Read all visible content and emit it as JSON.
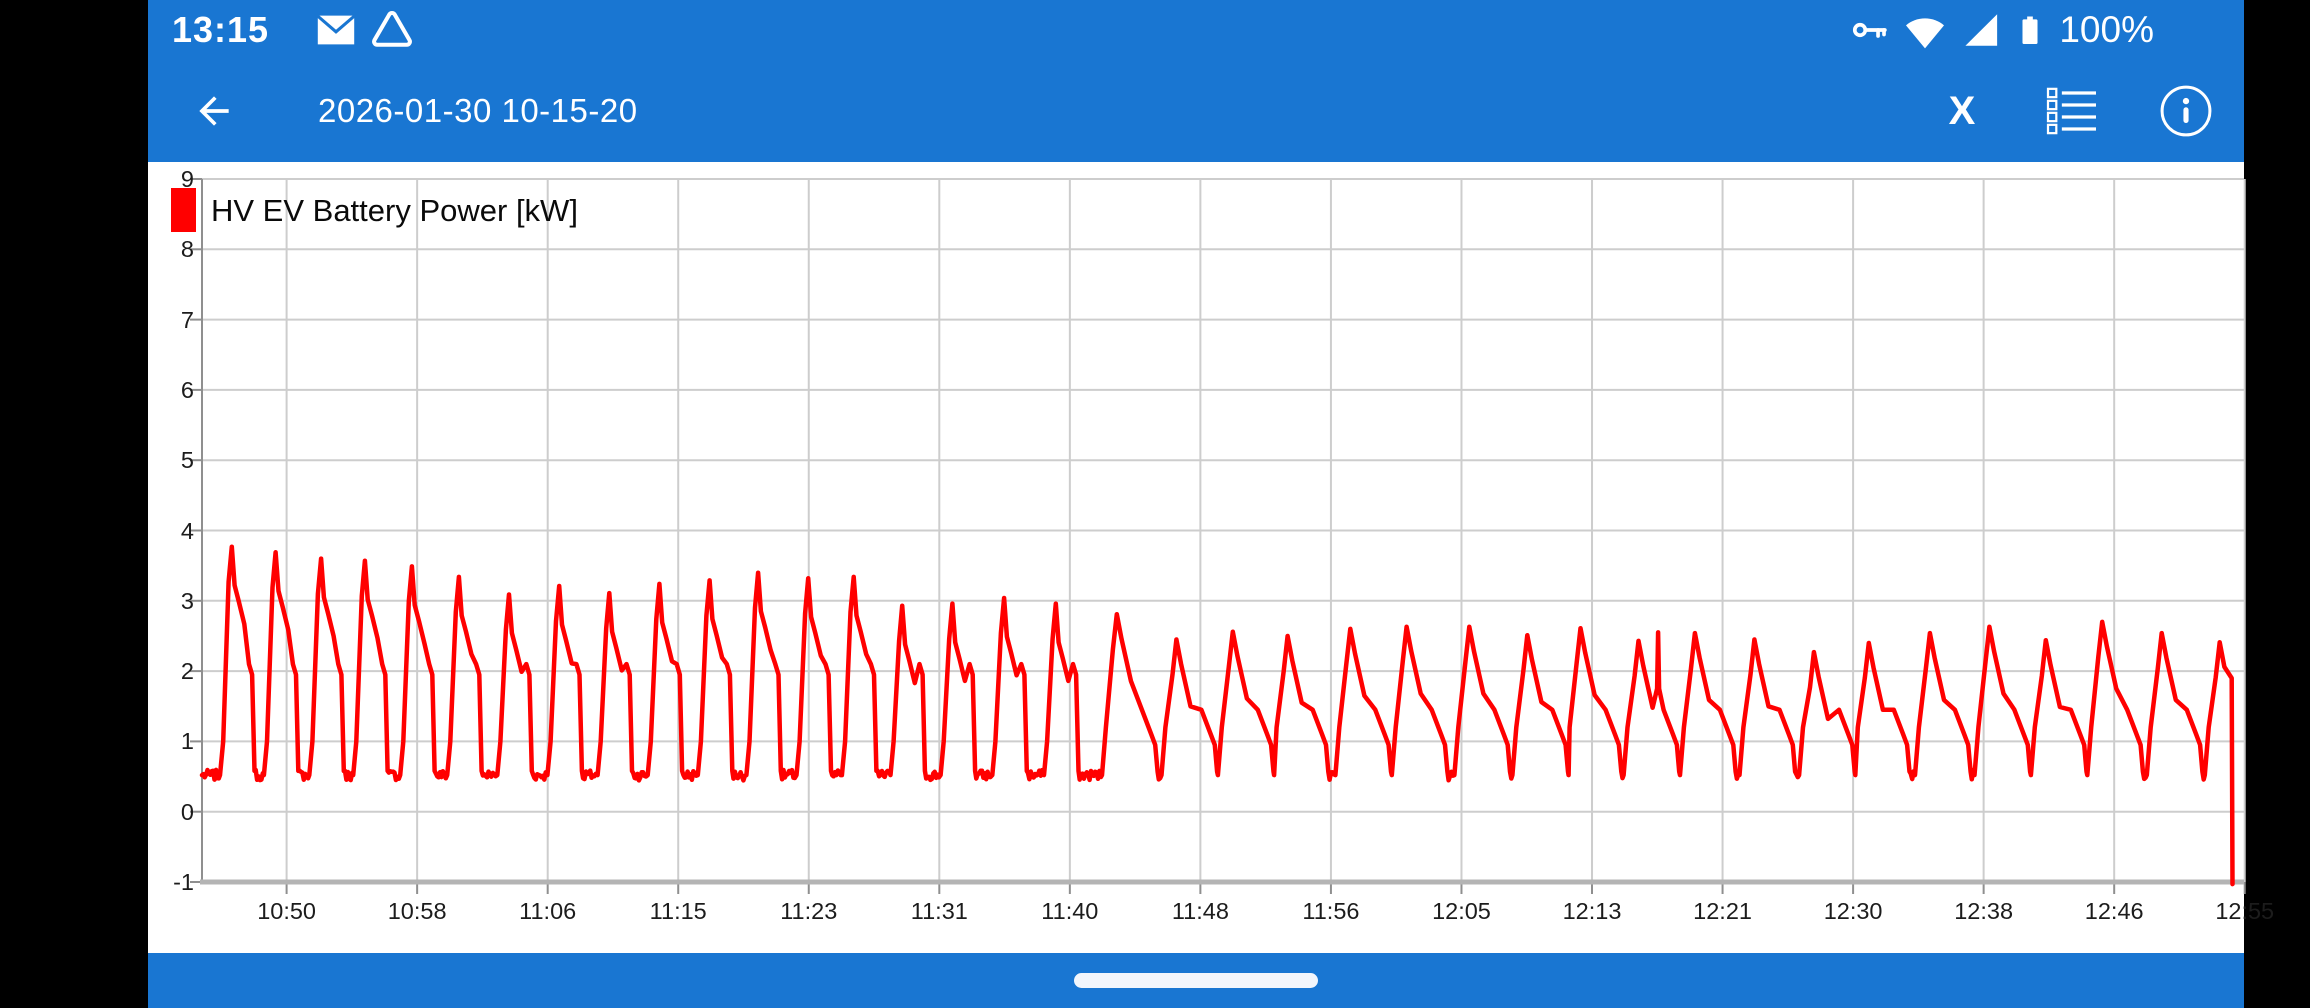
{
  "colors": {
    "accent_blue": "#1976d2",
    "series_red": "#ff0000",
    "notch_black": "#000000",
    "gridline_gray": "#cdcdcd",
    "axis_gray": "#8f8f8f",
    "baseline_axis_gray": "#b4b4b4"
  },
  "status_bar": {
    "time": "13:15",
    "battery_level": "100%",
    "left_icons": [
      "mail-icon",
      "drive-icon"
    ],
    "right_icons": [
      "key-icon",
      "wifi-icon",
      "cellular-icon",
      "battery-icon"
    ]
  },
  "app_bar": {
    "title": "2026-01-30 10-15-20",
    "back_icon": "arrow-left-icon",
    "close_label": "X",
    "action_icons": [
      "series-list-icon",
      "info-icon"
    ]
  },
  "nav_bar": {
    "handle": "home-indicator"
  },
  "chart_data": {
    "type": "line",
    "legend": [
      {
        "label": "HV EV Battery Power [kW]",
        "color": "#ff0000"
      }
    ],
    "grid": true,
    "y_axis": {
      "min": -1,
      "max": 9,
      "tick_step": 1,
      "ticks": [
        9,
        8,
        7,
        6,
        5,
        4,
        3,
        2,
        1,
        0,
        -1
      ]
    },
    "x_axis": {
      "unit": "time-of-day",
      "window_minutes_after_10h": [
        44.6,
        174.96
      ],
      "ticks": [
        {
          "minute": 50,
          "label": "10:50"
        },
        {
          "minute": 58.333,
          "label": "10:58"
        },
        {
          "minute": 66.667,
          "label": "11:06"
        },
        {
          "minute": 75,
          "label": "11:15"
        },
        {
          "minute": 83.333,
          "label": "11:23"
        },
        {
          "minute": 91.667,
          "label": "11:31"
        },
        {
          "minute": 100,
          "label": "11:40"
        },
        {
          "minute": 108.333,
          "label": "11:48"
        },
        {
          "minute": 116.667,
          "label": "11:56"
        },
        {
          "minute": 125,
          "label": "12:05"
        },
        {
          "minute": 133.333,
          "label": "12:13"
        },
        {
          "minute": 141.667,
          "label": "12:21"
        },
        {
          "minute": 150,
          "label": "12:30"
        },
        {
          "minute": 158.333,
          "label": "12:38"
        },
        {
          "minute": 166.667,
          "label": "12:46"
        },
        {
          "minute": 175,
          "label": "12:55"
        }
      ]
    },
    "series": {
      "name": "HV EV Battery Power [kW]",
      "color": "#ff0000",
      "baseline_kw": 0.52,
      "baseline_noise_kw": 0.15,
      "phase_change_minute": 100,
      "end_drop_minute": 174.22,
      "waveform": {
        "spike": {
          "rise_start": -0.75,
          "keys": [
            [
              -0.55,
              "abs",
              1.0
            ],
            [
              -0.2,
              "rel",
              -0.5
            ],
            [
              0,
              "rel",
              0
            ],
            [
              0.18,
              "rel",
              -0.55
            ],
            [
              0.45,
              "rel",
              -0.78
            ],
            [
              0.8,
              "rel",
              -1.1
            ],
            [
              1.1,
              "abs",
              2.1
            ],
            [
              1.3,
              "abs",
              1.95
            ],
            [
              1.45,
              "base",
              0.06
            ]
          ]
        },
        "sawtooth": {
          "rise_start": -0.95,
          "keys": [
            [
              -0.7,
              "abs",
              1.2
            ],
            [
              -0.25,
              "rel",
              -0.5
            ],
            [
              0,
              "rel",
              0
            ],
            [
              0.3,
              "rel",
              -0.35
            ],
            [
              0.9,
              "rel",
              -0.95
            ],
            [
              1.6,
              "abs",
              1.45
            ],
            [
              2.2,
              "abs",
              1.1
            ],
            [
              2.45,
              "abs",
              0.95
            ],
            [
              2.6,
              "base",
              0.05
            ]
          ]
        }
      },
      "glitches": [
        {
          "minute": 137.55,
          "kw": 2.55,
          "from_kw": 1.75
        }
      ],
      "cycles": [
        {
          "t": 46.5,
          "p": 3.77
        },
        {
          "t": 49.3,
          "p": 3.69
        },
        {
          "t": 52.2,
          "p": 3.6
        },
        {
          "t": 55.0,
          "p": 3.57
        },
        {
          "t": 58.0,
          "p": 3.49
        },
        {
          "t": 61.0,
          "p": 3.34
        },
        {
          "t": 64.2,
          "p": 3.09
        },
        {
          "t": 67.4,
          "p": 3.21
        },
        {
          "t": 70.6,
          "p": 3.11
        },
        {
          "t": 73.8,
          "p": 3.24
        },
        {
          "t": 77.0,
          "p": 3.29
        },
        {
          "t": 80.1,
          "p": 3.4
        },
        {
          "t": 83.3,
          "p": 3.32
        },
        {
          "t": 86.2,
          "p": 3.34
        },
        {
          "t": 89.3,
          "p": 2.93
        },
        {
          "t": 92.5,
          "p": 2.96
        },
        {
          "t": 95.8,
          "p": 3.04
        },
        {
          "t": 99.1,
          "p": 2.96
        },
        {
          "t": 103.0,
          "p": 2.81
        },
        {
          "t": 106.8,
          "p": 2.45
        },
        {
          "t": 110.4,
          "p": 2.56
        },
        {
          "t": 113.9,
          "p": 2.5
        },
        {
          "t": 117.9,
          "p": 2.6
        },
        {
          "t": 121.5,
          "p": 2.63
        },
        {
          "t": 125.5,
          "p": 2.63
        },
        {
          "t": 129.2,
          "p": 2.51
        },
        {
          "t": 132.6,
          "p": 2.61
        },
        {
          "t": 136.3,
          "p": 2.43
        },
        {
          "t": 139.9,
          "p": 2.54
        },
        {
          "t": 143.7,
          "p": 2.45
        },
        {
          "t": 147.5,
          "p": 2.27
        },
        {
          "t": 151.0,
          "p": 2.4
        },
        {
          "t": 154.9,
          "p": 2.54
        },
        {
          "t": 158.7,
          "p": 2.63
        },
        {
          "t": 162.3,
          "p": 2.44
        },
        {
          "t": 165.9,
          "p": 2.7
        },
        {
          "t": 169.7,
          "p": 2.54
        },
        {
          "t": 173.4,
          "p": 2.41
        }
      ]
    }
  }
}
